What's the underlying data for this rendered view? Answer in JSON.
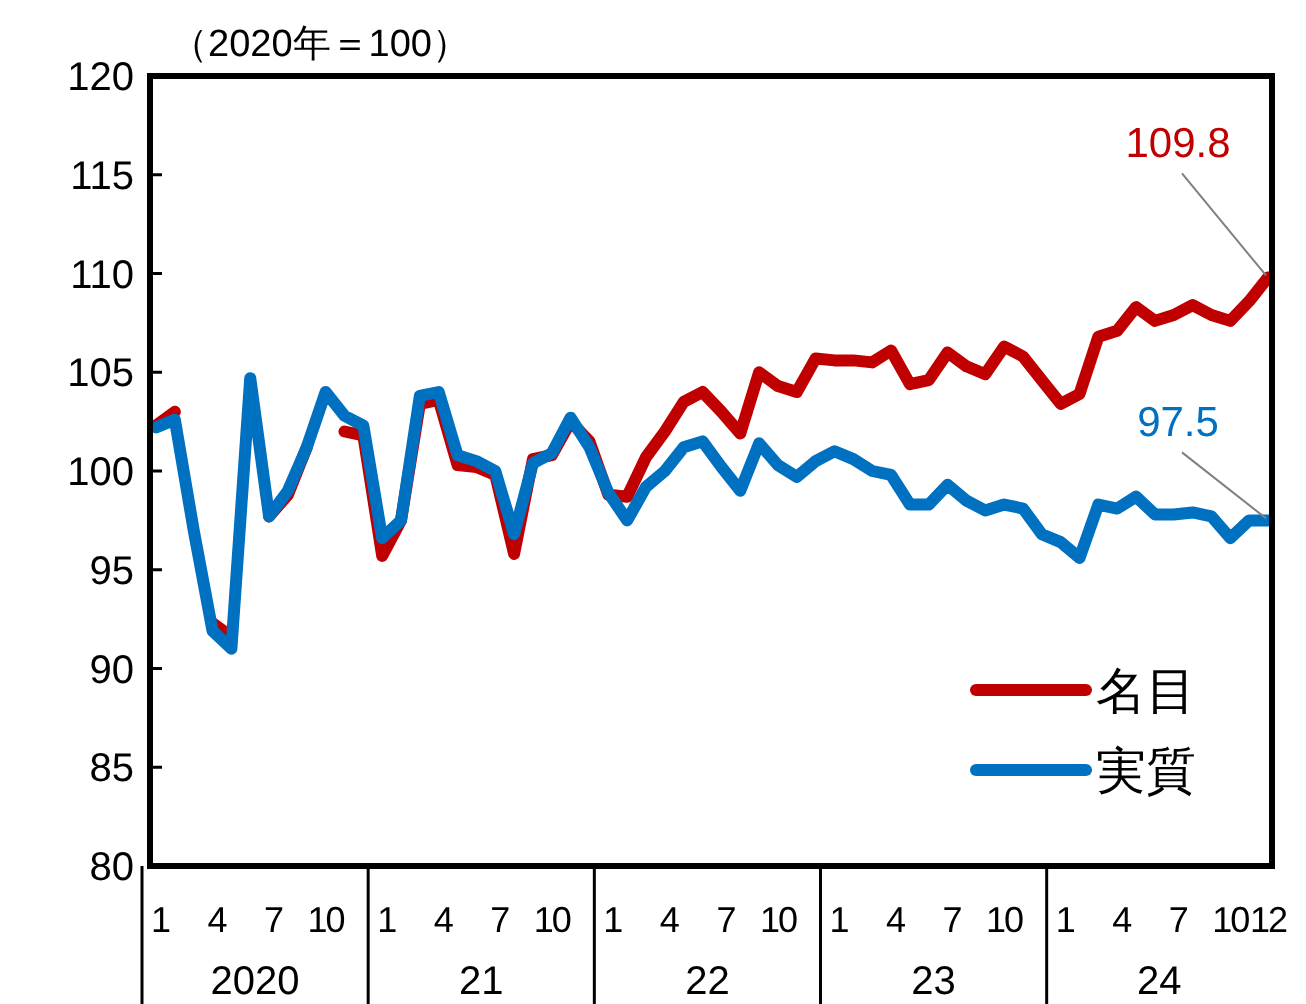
{
  "chart_data": {
    "type": "line",
    "title": "（2020年＝100）",
    "categories": [
      "1",
      null,
      null,
      "4",
      null,
      null,
      "7",
      null,
      null,
      "10",
      null,
      null,
      "1",
      null,
      null,
      "4",
      null,
      null,
      "7",
      null,
      null,
      "10",
      null,
      null,
      "1",
      null,
      null,
      "4",
      null,
      null,
      "7",
      null,
      null,
      "10",
      null,
      null,
      "1",
      null,
      null,
      "4",
      null,
      null,
      "7",
      null,
      null,
      "10",
      null,
      null,
      "1",
      null,
      null,
      "4",
      null,
      null,
      "7",
      null,
      null,
      "10",
      null,
      "12"
    ],
    "series": [
      {
        "name": "名目",
        "color": "#c00000",
        "values": [
          102.3,
          103.0,
          null,
          92.3,
          91.6,
          null,
          97.7,
          98.8,
          101.2,
          null,
          102.0,
          101.8,
          95.7,
          97.5,
          103.4,
          103.6,
          100.3,
          100.2,
          99.8,
          95.8,
          100.6,
          100.8,
          102.5,
          101.5,
          98.8,
          98.7,
          100.7,
          102.0,
          103.5,
          104.0,
          103.0,
          101.9,
          105.0,
          104.3,
          104.0,
          105.7,
          105.6,
          105.6,
          105.5,
          106.1,
          104.4,
          104.6,
          106.0,
          105.3,
          104.9,
          106.3,
          105.8,
          104.6,
          103.4,
          103.9,
          106.8,
          107.1,
          108.3,
          107.6,
          107.9,
          108.4,
          107.9,
          107.6,
          108.6,
          109.8
        ],
        "value_labels": [
          null,
          null,
          null,
          null,
          null,
          null,
          null,
          null,
          null,
          null,
          null,
          null,
          null,
          null,
          null,
          null,
          null,
          null,
          null,
          null,
          null,
          null,
          null,
          null,
          null,
          null,
          null,
          null,
          null,
          null,
          null,
          null,
          null,
          null,
          null,
          null,
          null,
          null,
          null,
          null,
          null,
          null,
          null,
          null,
          null,
          null,
          null,
          null,
          null,
          null,
          null,
          null,
          null,
          null,
          null,
          null,
          null,
          null,
          null,
          "109.8"
        ]
      },
      {
        "name": "実質",
        "color": "#0070c0",
        "values": [
          102.2,
          102.6,
          97.0,
          91.9,
          91.0,
          104.7,
          97.7,
          99.0,
          101.2,
          104.0,
          102.8,
          102.3,
          96.6,
          97.5,
          103.8,
          104.0,
          100.8,
          100.5,
          100.0,
          96.8,
          100.4,
          100.9,
          102.7,
          101.2,
          98.9,
          97.5,
          99.2,
          100.0,
          101.2,
          101.5,
          100.2,
          99.0,
          101.4,
          100.3,
          99.7,
          100.5,
          101.0,
          100.6,
          100.0,
          99.8,
          98.3,
          98.3,
          99.3,
          98.5,
          98.0,
          98.3,
          98.1,
          96.8,
          96.4,
          95.6,
          98.3,
          98.1,
          98.7,
          97.8,
          97.8,
          97.9,
          97.7,
          96.6,
          97.5,
          97.5
        ],
        "value_labels": [
          null,
          null,
          null,
          null,
          null,
          null,
          null,
          null,
          null,
          null,
          null,
          null,
          null,
          null,
          null,
          null,
          null,
          null,
          null,
          null,
          null,
          null,
          null,
          null,
          null,
          null,
          null,
          null,
          null,
          null,
          null,
          null,
          null,
          null,
          null,
          null,
          null,
          null,
          null,
          null,
          null,
          null,
          null,
          null,
          null,
          null,
          null,
          null,
          null,
          null,
          null,
          null,
          null,
          null,
          null,
          null,
          null,
          null,
          null,
          "97.5"
        ]
      }
    ],
    "ylim": [
      80,
      120
    ],
    "yticks": [
      80,
      85,
      90,
      95,
      100,
      105,
      110,
      115,
      120
    ],
    "legend": "bottom right",
    "annotations": [
      "2020",
      "21",
      "22",
      "23",
      "24"
    ]
  }
}
